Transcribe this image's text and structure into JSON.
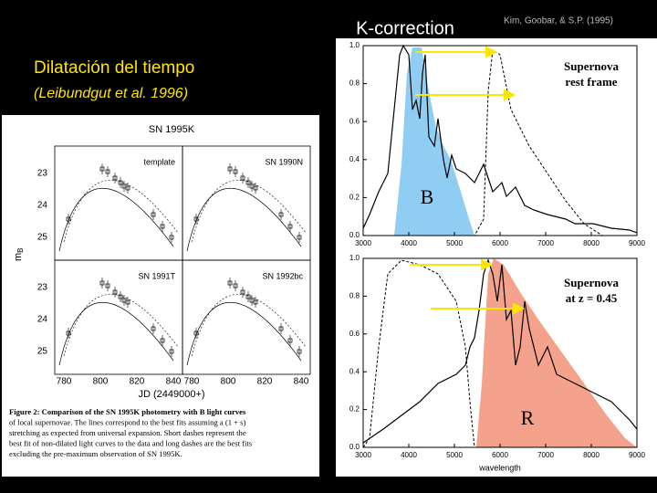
{
  "header": {
    "title": "K-correction",
    "credit": "Kim, Goobar, & S.P. (1995)"
  },
  "left": {
    "title": "Dilatación del tiempo",
    "subtitle": "(Leibundgut  et al. 1996)"
  },
  "figure_left": {
    "title": "SN 1995K",
    "panels": [
      "template",
      "SN 1990N",
      "SN 1991T",
      "SN 1992bc"
    ],
    "yticks": [
      "23",
      "24",
      "25"
    ],
    "xticks": [
      "780",
      "800",
      "820",
      "840"
    ],
    "xlabel": "JD (2449000+)",
    "ylabel": "m",
    "ylabel_sub": "B",
    "caption": [
      "Figure 2: Comparison of the SN 1995K photometry with B light curves",
      "of local supernovae. The lines correspond to the best fits assuming a (1 + s)",
      "stretching as expected from universal expansion. Short dashes represent the",
      "best fit of non-dilated light curves to the data and long dashes are the best fits",
      "excluding the pre-maximum observation of SN 1995K."
    ]
  },
  "figure_right": {
    "top_label": [
      "Supernova",
      "rest frame"
    ],
    "top_band": "B",
    "bottom_label": [
      "Supernova",
      "at z = 0.45"
    ],
    "bottom_band": "R",
    "yticks": [
      "0.0",
      "0.2",
      "0.4",
      "0.6",
      "0.8",
      "1.0"
    ],
    "xticks": [
      "3000",
      "4000",
      "5000",
      "6000",
      "7000",
      "8000",
      "9000"
    ],
    "xlabel": "wavelength"
  }
}
